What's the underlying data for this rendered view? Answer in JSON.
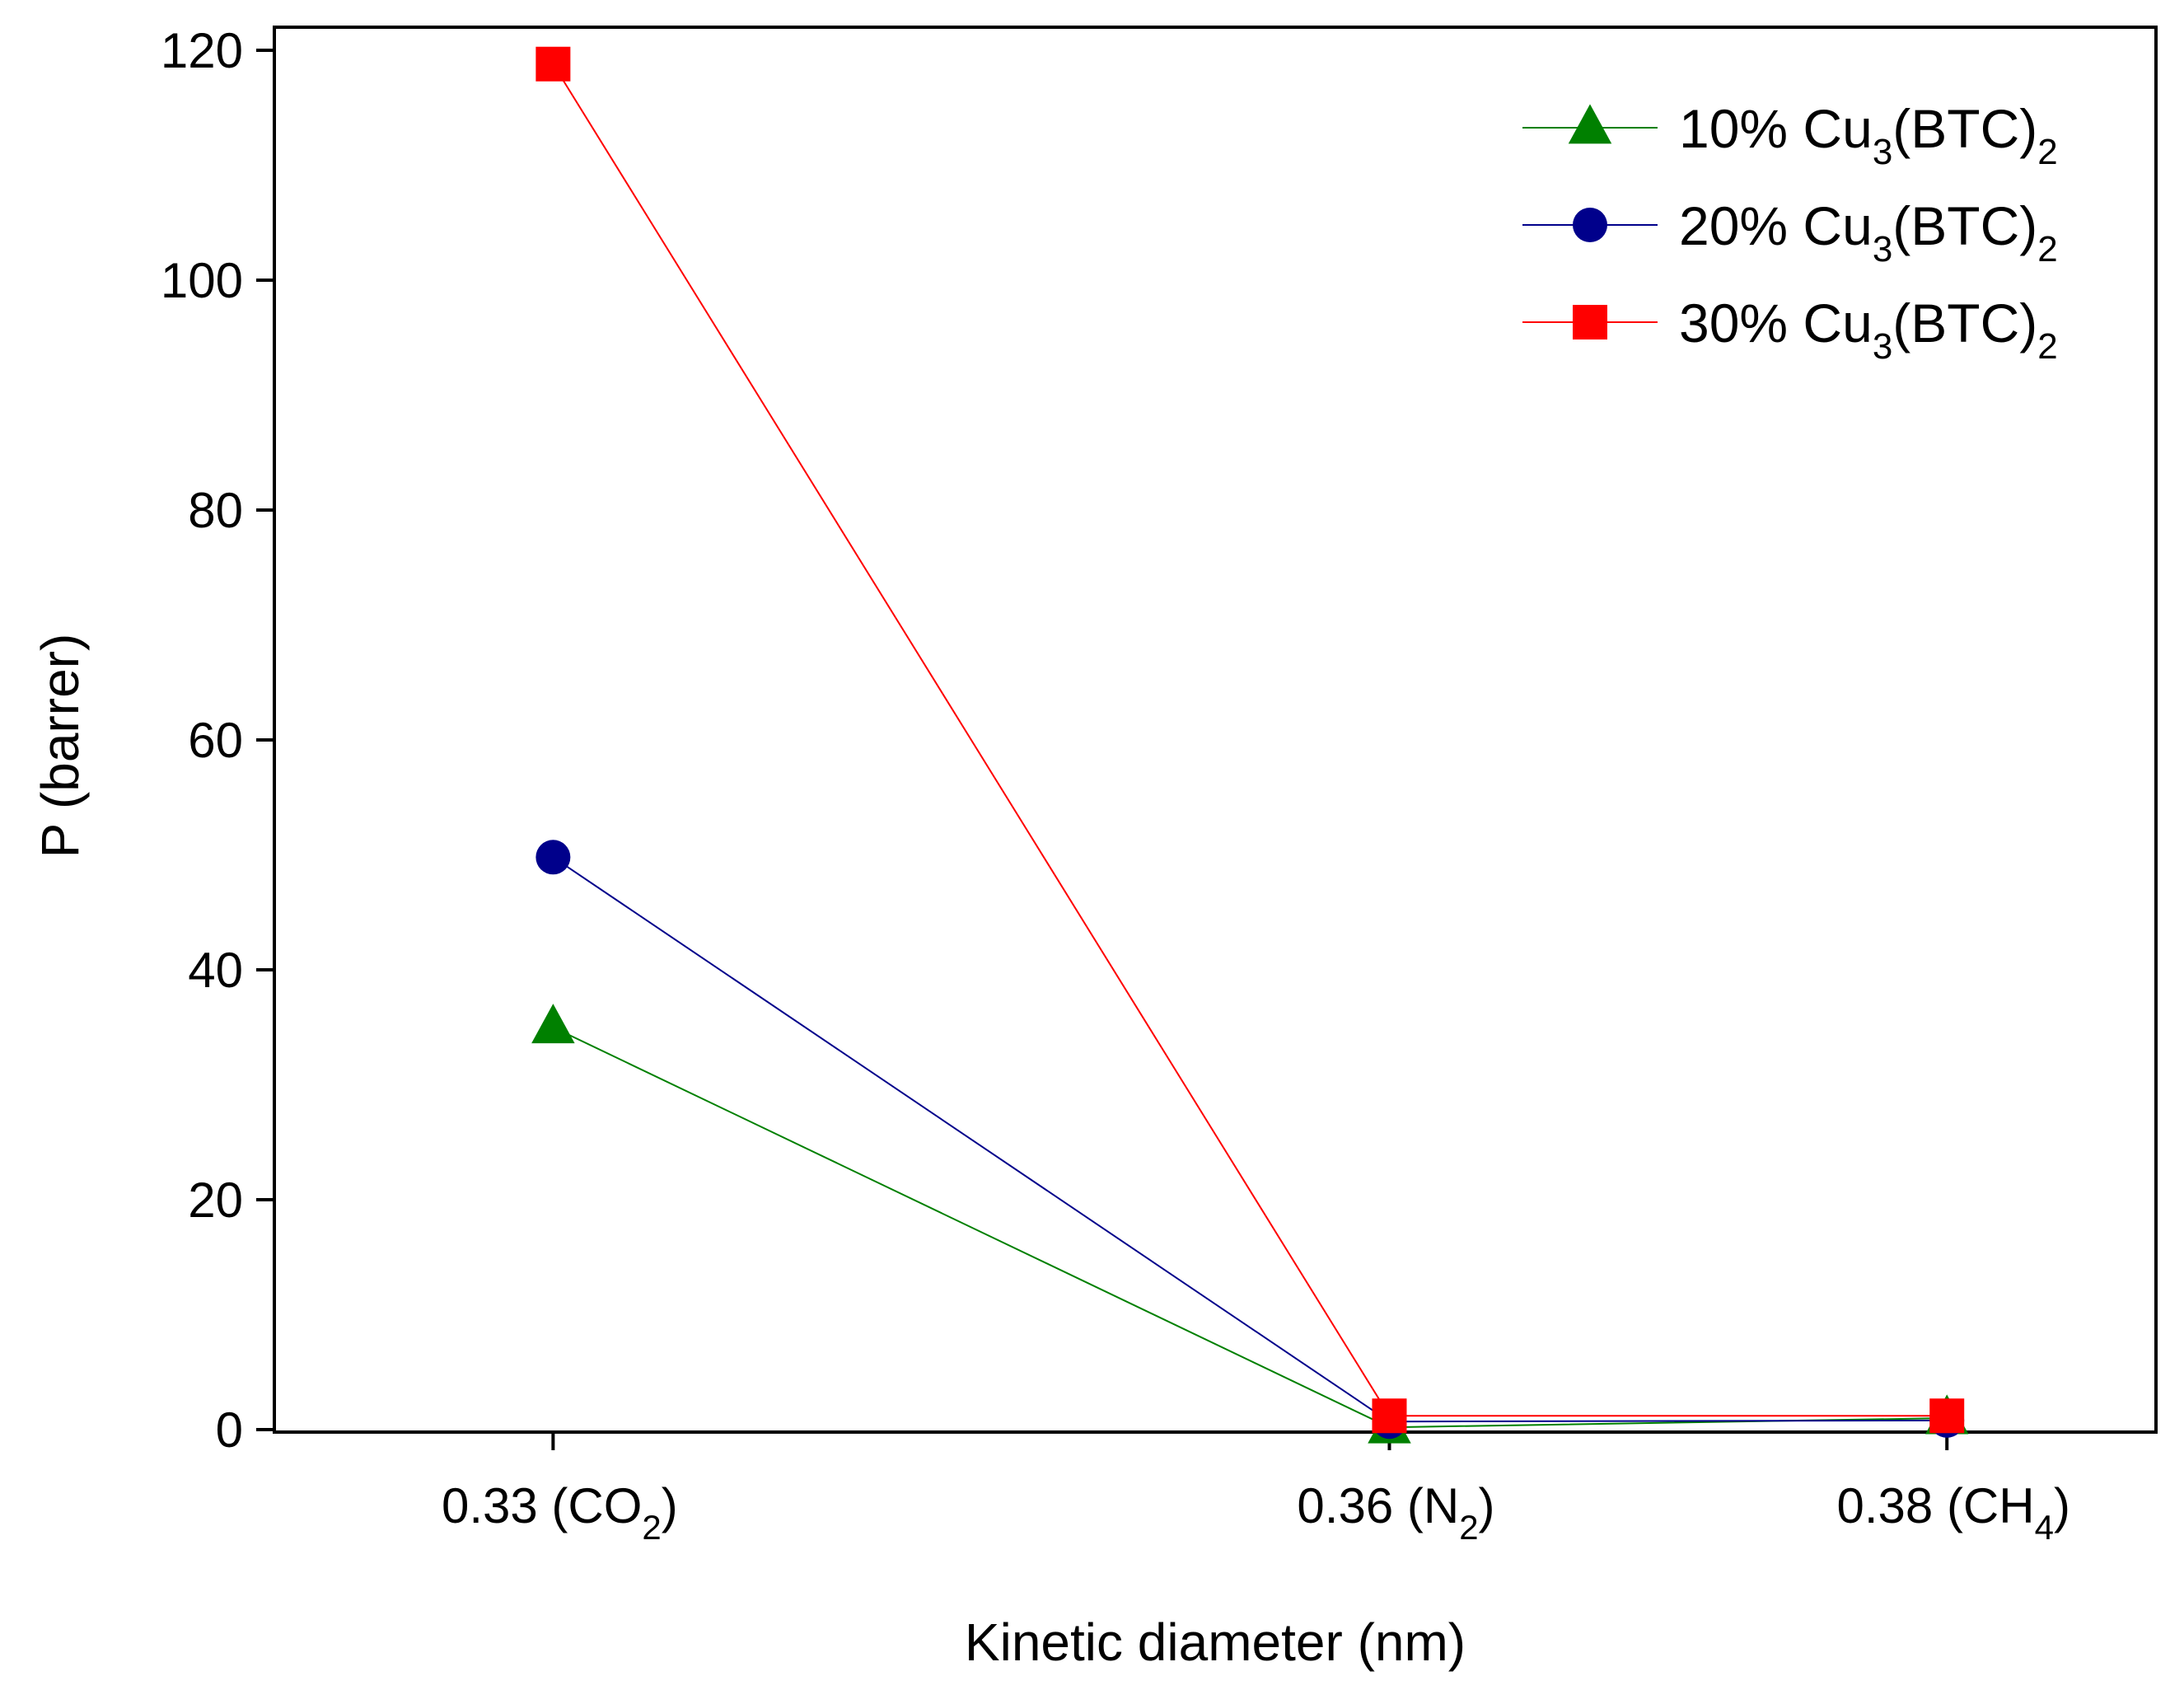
{
  "chart_data": {
    "type": "line",
    "title": "",
    "xlabel": "Kinetic diameter (nm)",
    "ylabel": "P (barrer)",
    "ylim": [
      0,
      120
    ],
    "yticks": [
      0,
      20,
      40,
      60,
      80,
      100,
      120
    ],
    "grid": false,
    "legend_position": "top-right",
    "x": [
      0.33,
      0.36,
      0.38
    ],
    "xlim": [
      0.32,
      0.3875
    ],
    "x_tick_labels": [
      {
        "value": 0.33,
        "main": "0.33 (CO",
        "sub": "2",
        "close": ")"
      },
      {
        "value": 0.36,
        "main": "0.36 (N",
        "sub": "2",
        "close": ")"
      },
      {
        "value": 0.38,
        "main": "0.38 (CH",
        "sub": "4",
        "close": ")"
      }
    ],
    "series": [
      {
        "name": "10% Cu3(BTC)2",
        "label_parts": [
          "10% Cu",
          "3",
          "(BTC)",
          "2"
        ],
        "marker": "triangle",
        "color": "#008000",
        "values": [
          35.0,
          0.2,
          1.0
        ]
      },
      {
        "name": "20% Cu3(BTC)2",
        "label_parts": [
          "20% Cu",
          "3",
          "(BTC)",
          "2"
        ],
        "marker": "circle",
        "color": "#00008B",
        "values": [
          49.8,
          0.7,
          0.8
        ]
      },
      {
        "name": "30% Cu3(BTC)2",
        "label_parts": [
          "30% Cu",
          "3",
          "(BTC)",
          "2"
        ],
        "marker": "square",
        "color": "#FF0000",
        "values": [
          118.8,
          1.2,
          1.2
        ]
      }
    ]
  }
}
